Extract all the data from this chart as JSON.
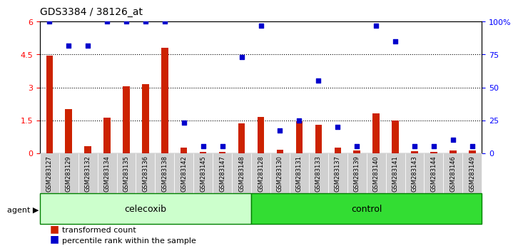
{
  "title": "GDS3384 / 38126_at",
  "samples": [
    "GSM283127",
    "GSM283129",
    "GSM283132",
    "GSM283134",
    "GSM283135",
    "GSM283136",
    "GSM283138",
    "GSM283142",
    "GSM283145",
    "GSM283147",
    "GSM283148",
    "GSM283128",
    "GSM283130",
    "GSM283131",
    "GSM283133",
    "GSM283137",
    "GSM283139",
    "GSM283140",
    "GSM283141",
    "GSM283143",
    "GSM283144",
    "GSM283146",
    "GSM283149"
  ],
  "transformed_count": [
    4.45,
    2.0,
    0.3,
    1.6,
    3.05,
    3.15,
    4.8,
    0.25,
    0.05,
    0.05,
    1.35,
    1.65,
    0.15,
    1.45,
    1.3,
    0.25,
    0.12,
    1.8,
    1.5,
    0.08,
    0.05,
    0.12,
    0.1
  ],
  "percentile_rank": [
    100,
    82,
    82,
    100,
    100,
    100,
    100,
    23,
    5,
    5,
    73,
    97,
    17,
    25,
    55,
    20,
    5,
    97,
    85,
    5,
    5,
    10,
    5
  ],
  "celecoxib_count": 11,
  "control_count": 12,
  "bar_color": "#cc2200",
  "dot_color": "#0000cc",
  "celecoxib_bg": "#ccffcc",
  "control_bg": "#33dd33",
  "agent_label_bg": "#ccffcc",
  "grid_color": "#000000",
  "ylim_left": [
    0,
    6
  ],
  "ylim_right": [
    0,
    100
  ],
  "yticks_left": [
    0,
    1.5,
    3.0,
    4.5,
    6
  ],
  "yticks_right": [
    0,
    25,
    50,
    75,
    100
  ],
  "yticklabels_left": [
    "0",
    "1.5",
    "3",
    "4.5",
    "6"
  ],
  "yticklabels_right": [
    "0",
    "25",
    "50",
    "75",
    "100%"
  ],
  "hlines": [
    1.5,
    3.0,
    4.5
  ],
  "background_color": "#e8e8e8",
  "plot_bg": "#ffffff"
}
